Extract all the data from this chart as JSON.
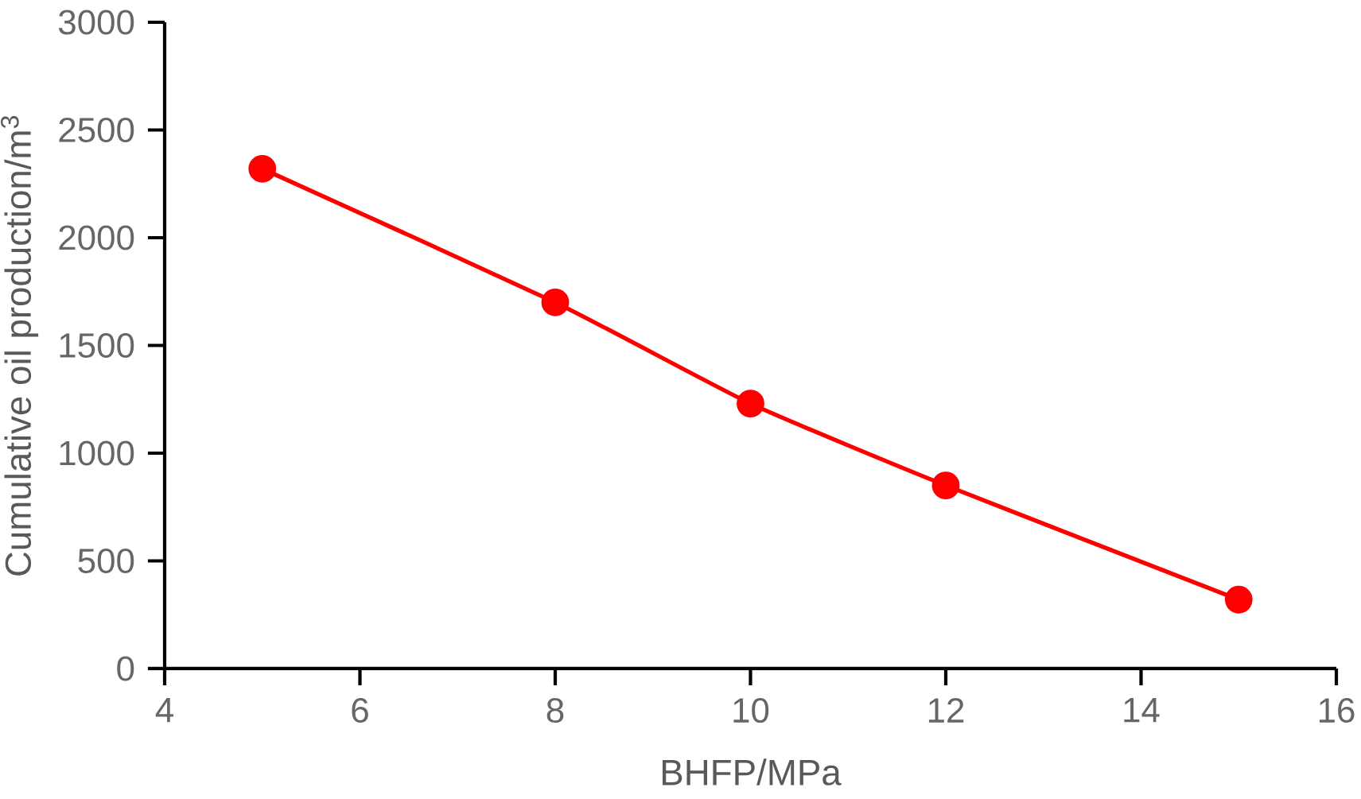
{
  "chart_data": {
    "type": "line",
    "xlabel": "BHFP/MPa",
    "ylabel": "Cumulative oil production/m$^{3}$",
    "x": [
      5,
      8,
      10,
      12,
      15
    ],
    "series": [
      {
        "color": "#ff0000",
        "values": [
          2320,
          1700,
          1230,
          850,
          320
        ]
      }
    ],
    "xlim": [
      4,
      16
    ],
    "xticks": [
      4,
      6,
      8,
      10,
      12,
      14,
      16
    ],
    "ylim": [
      0,
      3000
    ],
    "yticks": [
      0,
      500,
      1000,
      1500,
      2000,
      2500,
      3000
    ],
    "marker": "circle",
    "line_style": "solid",
    "grid": false
  }
}
